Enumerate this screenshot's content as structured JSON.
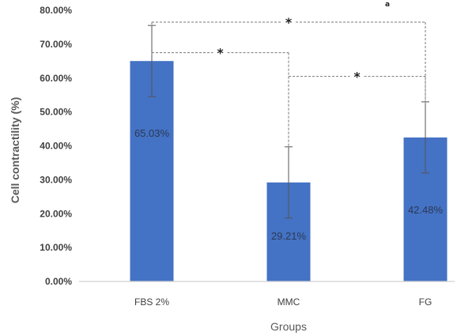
{
  "chart_data": {
    "type": "bar",
    "title": "",
    "xlabel": "Groups",
    "ylabel": "Cell  contractility  (%)",
    "categories": [
      "FBS 2%",
      "MMC",
      "FG"
    ],
    "series": [
      {
        "values": [
          65.03,
          29.21,
          42.48
        ],
        "error": [
          10.5,
          10.5,
          10.5
        ],
        "data_labels": [
          "65.03%",
          "29.21%",
          "42.48%"
        ],
        "color": "#4472c4"
      }
    ],
    "ylim": [
      0,
      80
    ],
    "yticks": [
      "0.00%",
      "10.00%",
      "20.00%",
      "30.00%",
      "40.00%",
      "50.00%",
      "60.00%",
      "70.00%",
      "80.00%"
    ],
    "grid": false,
    "legend": "none",
    "significance": [
      {
        "from": "FBS 2%",
        "to": "FG",
        "level": 76.5,
        "marker": "*"
      },
      {
        "from": "FBS 2%",
        "to": "MMC",
        "level": 67.5,
        "marker": "*"
      },
      {
        "from": "MMC",
        "to": "FG",
        "level": 60.5,
        "marker": "*"
      }
    ]
  }
}
